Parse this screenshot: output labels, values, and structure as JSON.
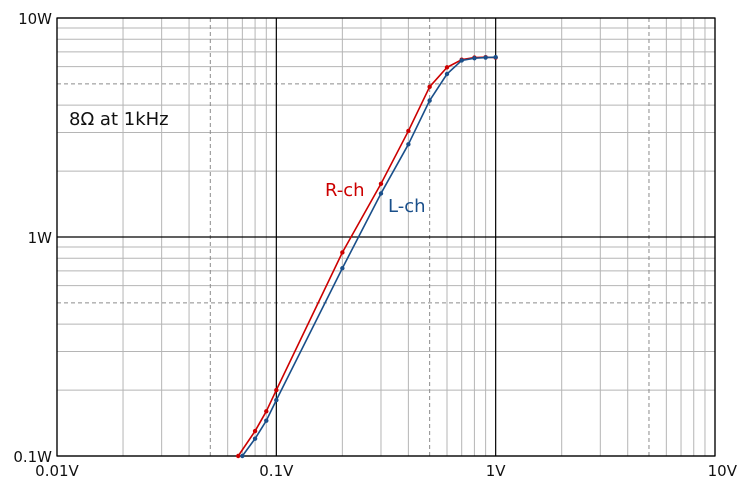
{
  "chart_data": {
    "type": "line",
    "x_scale": "log",
    "y_scale": "log",
    "xlim": [
      0.01,
      10
    ],
    "ylim": [
      0.1,
      10
    ],
    "grid": true,
    "x_ticks": [
      {
        "value": 0.01,
        "label": "0.01V"
      },
      {
        "value": 0.1,
        "label": "0.1V"
      },
      {
        "value": 1,
        "label": "1V"
      },
      {
        "value": 10,
        "label": "10V"
      }
    ],
    "y_ticks": [
      {
        "value": 0.1,
        "label": "0.1W"
      },
      {
        "value": 1,
        "label": "1W"
      },
      {
        "value": 10,
        "label": "10W"
      }
    ],
    "annotation": "8Ω at 1kHz",
    "series": [
      {
        "name": "R-ch",
        "color": "#cc0000",
        "x": [
          0.067,
          0.08,
          0.09,
          0.1,
          0.2,
          0.3,
          0.4,
          0.5,
          0.6,
          0.7,
          0.8,
          0.9,
          1.0
        ],
        "y": [
          0.1,
          0.13,
          0.16,
          0.2,
          0.85,
          1.75,
          3.05,
          4.85,
          5.95,
          6.45,
          6.6,
          6.62,
          6.6
        ]
      },
      {
        "name": "L-ch",
        "color": "#1a4f8a",
        "x": [
          0.07,
          0.08,
          0.09,
          0.1,
          0.2,
          0.3,
          0.4,
          0.5,
          0.6,
          0.7,
          0.8,
          0.9,
          1.0
        ],
        "y": [
          0.1,
          0.12,
          0.145,
          0.18,
          0.72,
          1.58,
          2.65,
          4.2,
          5.55,
          6.4,
          6.55,
          6.6,
          6.62
        ]
      }
    ]
  }
}
